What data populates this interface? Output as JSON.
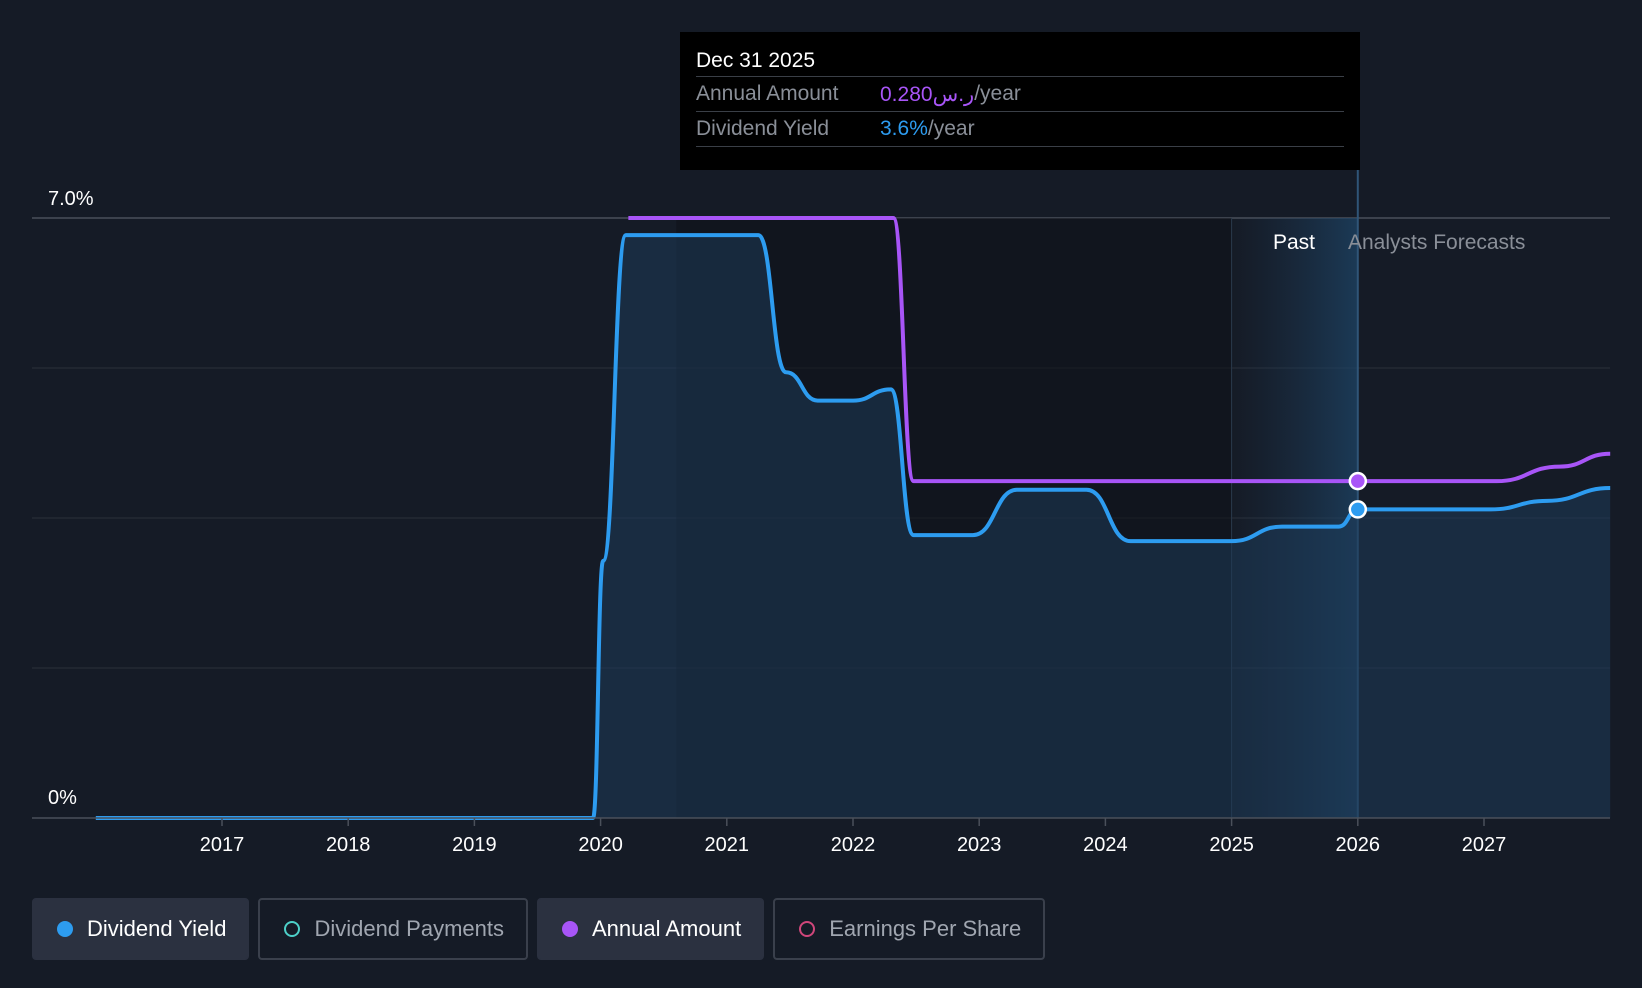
{
  "tooltip": {
    "date": "Dec 31 2025",
    "annual_label": "Annual Amount",
    "annual_value": "0.280ر.س",
    "annual_unit": "/year",
    "yield_label": "Dividend Yield",
    "yield_value": "3.6%",
    "yield_unit": "/year"
  },
  "region_labels": {
    "past": "Past",
    "forecast": "Analysts Forecasts"
  },
  "legend": [
    {
      "label": "Dividend Yield",
      "color": "#2d9cf0",
      "active": true,
      "filled": true
    },
    {
      "label": "Dividend Payments",
      "color": "#4dd0c8",
      "active": false,
      "filled": false
    },
    {
      "label": "Annual Amount",
      "color": "#a855f7",
      "active": true,
      "filled": true
    },
    {
      "label": "Earnings Per Share",
      "color": "#d0467a",
      "active": false,
      "filled": false
    }
  ],
  "colors": {
    "background": "#151b26",
    "yield": "#2d9cf0",
    "annual": "#a855f7",
    "grid": "#2a303a",
    "axis_text": "#ffffff"
  },
  "chart_data": {
    "type": "line",
    "x_ticks": [
      "2017",
      "2018",
      "2019",
      "2020",
      "2021",
      "2022",
      "2023",
      "2024",
      "2025",
      "2026",
      "2027"
    ],
    "y_tick_labels": [
      "7.0%",
      "0%"
    ],
    "ylim": [
      0,
      7.0
    ],
    "xlim": [
      2016.0,
      2028.0
    ],
    "past_forecast_boundary": 2026.0,
    "highlight_x": 2026.0,
    "series": [
      {
        "name": "Dividend Yield",
        "unit": "%",
        "points": [
          [
            2016.0,
            0
          ],
          [
            2019.94,
            0
          ],
          [
            2020.02,
            3.0
          ],
          [
            2020.2,
            6.8
          ],
          [
            2021.25,
            6.8
          ],
          [
            2021.47,
            5.2
          ],
          [
            2021.72,
            4.87
          ],
          [
            2022.0,
            4.87
          ],
          [
            2022.3,
            5.0
          ],
          [
            2022.48,
            3.3
          ],
          [
            2022.95,
            3.3
          ],
          [
            2023.3,
            3.83
          ],
          [
            2023.85,
            3.83
          ],
          [
            2024.2,
            3.23
          ],
          [
            2025.0,
            3.23
          ],
          [
            2025.4,
            3.4
          ],
          [
            2025.85,
            3.4
          ],
          [
            2026.0,
            3.6
          ],
          [
            2027.05,
            3.6
          ],
          [
            2027.5,
            3.7
          ],
          [
            2028.0,
            3.85
          ]
        ]
      },
      {
        "name": "Annual Amount",
        "unit": "SAR",
        "scaled_points": [
          [
            2020.22,
            7.0
          ],
          [
            2022.32,
            7.0
          ],
          [
            2022.48,
            3.93
          ],
          [
            2026.0,
            3.93
          ],
          [
            2027.1,
            3.93
          ],
          [
            2027.6,
            4.1
          ],
          [
            2028.0,
            4.25
          ]
        ],
        "value_at_highlight": 0.28
      }
    ]
  }
}
